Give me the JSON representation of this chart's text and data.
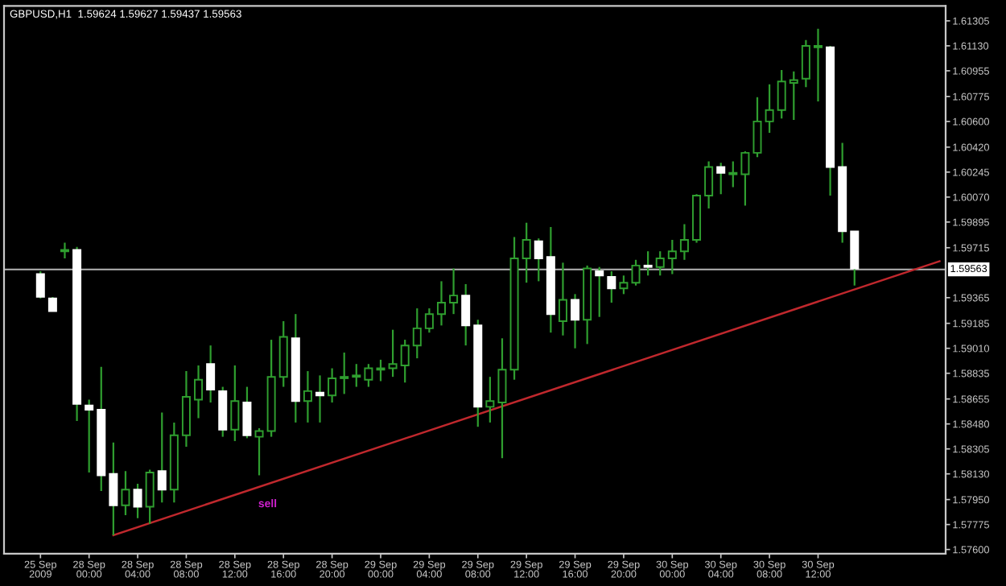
{
  "chart_data": {
    "type": "candlestick",
    "title": "GBPUSD,H1  1.59624 1.59627 1.59437 1.59563",
    "categories": [
      "25 Sep 2009",
      null,
      null,
      null,
      "28 Sep 00:00",
      null,
      null,
      null,
      "28 Sep 04:00",
      null,
      null,
      null,
      "28 Sep 08:00",
      null,
      null,
      null,
      "28 Sep 12:00",
      null,
      null,
      null,
      "28 Sep 16:00",
      null,
      null,
      null,
      "28 Sep 20:00",
      null,
      null,
      null,
      "29 Sep 00:00",
      null,
      null,
      null,
      "29 Sep 04:00",
      null,
      null,
      null,
      "29 Sep 08:00",
      null,
      null,
      null,
      "29 Sep 12:00",
      null,
      null,
      null,
      "29 Sep 16:00",
      null,
      null,
      null,
      "29 Sep 20:00",
      null,
      null,
      null,
      "30 Sep 00:00",
      null,
      null,
      null,
      "30 Sep 04:00",
      null,
      null,
      null,
      "30 Sep 08:00",
      null,
      null,
      null,
      "30 Sep 12:00",
      null,
      null,
      null,
      null,
      null,
      null,
      null,
      null,
      null,
      null
    ],
    "series": [
      {
        "type": "candlestick",
        "color": "#2f9e2f",
        "colors": [
          "#ffffff",
          "#ffffff",
          "#2f9e2f",
          "#ffffff",
          "#ffffff",
          "#ffffff",
          "#ffffff",
          "#2f9e2f",
          "#ffffff",
          "#2f9e2f",
          "#ffffff",
          "#2f9e2f",
          "#2f9e2f",
          "#2f9e2f",
          "#ffffff",
          "#ffffff",
          "#2f9e2f",
          "#ffffff",
          "#2f9e2f",
          "#2f9e2f",
          "#2f9e2f",
          "#ffffff",
          "#2f9e2f",
          "#ffffff",
          "#2f9e2f",
          "#2f9e2f",
          "#2f9e2f",
          "#2f9e2f",
          "#2f9e2f",
          "#2f9e2f",
          "#2f9e2f",
          "#2f9e2f",
          "#2f9e2f",
          "#2f9e2f",
          "#2f9e2f",
          "#ffffff",
          "#ffffff",
          "#2f9e2f",
          "#2f9e2f",
          "#2f9e2f",
          "#2f9e2f",
          "#ffffff",
          "#ffffff",
          "#2f9e2f",
          "#ffffff",
          "#2f9e2f",
          "#ffffff",
          "#ffffff",
          "#2f9e2f",
          "#2f9e2f",
          "#ffffff",
          "#2f9e2f",
          "#2f9e2f",
          "#2f9e2f",
          "#2f9e2f",
          "#2f9e2f",
          "#ffffff",
          "#2f9e2f",
          "#2f9e2f",
          "#2f9e2f",
          "#2f9e2f",
          "#2f9e2f",
          "#2f9e2f",
          "#2f9e2f",
          "#2f9e2f",
          "#ffffff",
          "#ffffff",
          "#ffffff",
          null,
          null,
          null,
          null,
          null,
          null,
          null
        ],
        "ohlc": [
          [
            1.5953,
            1.5955,
            1.5936,
            1.5937
          ],
          [
            1.5936,
            1.5937,
            1.5927,
            1.5927
          ],
          [
            1.5969,
            1.5975,
            1.5964,
            1.597
          ],
          [
            1.597,
            1.5972,
            1.585,
            1.5862
          ],
          [
            1.5861,
            1.5865,
            1.5814,
            1.5858
          ],
          [
            1.5858,
            1.5888,
            1.5801,
            1.5812
          ],
          [
            1.5813,
            1.5835,
            1.577,
            1.5791
          ],
          [
            1.5791,
            1.5815,
            1.5784,
            1.5802
          ],
          [
            1.5802,
            1.5806,
            1.5782,
            1.579
          ],
          [
            1.579,
            1.5816,
            1.5778,
            1.5814
          ],
          [
            1.5815,
            1.5856,
            1.5793,
            1.5802
          ],
          [
            1.5802,
            1.5849,
            1.5793,
            1.584
          ],
          [
            1.584,
            1.5885,
            1.5832,
            1.5867
          ],
          [
            1.5865,
            1.5889,
            1.5852,
            1.5879
          ],
          [
            1.589,
            1.5903,
            1.5863,
            1.5872
          ],
          [
            1.5871,
            1.5874,
            1.5839,
            1.5844
          ],
          [
            1.5844,
            1.5889,
            1.5836,
            1.5864
          ],
          [
            1.5863,
            1.5874,
            1.5838,
            1.584
          ],
          [
            1.5839,
            1.5845,
            1.5812,
            1.5843
          ],
          [
            1.5843,
            1.5907,
            1.5839,
            1.5881
          ],
          [
            1.5881,
            1.592,
            1.5874,
            1.5909
          ],
          [
            1.5908,
            1.5925,
            1.5849,
            1.5864
          ],
          [
            1.5864,
            1.5885,
            1.5849,
            1.5871
          ],
          [
            1.587,
            1.5882,
            1.5849,
            1.5868
          ],
          [
            1.5868,
            1.5887,
            1.5863,
            1.588
          ],
          [
            1.588,
            1.5898,
            1.5869,
            1.5881
          ],
          [
            1.5881,
            1.589,
            1.5874,
            1.5882
          ],
          [
            1.5879,
            1.589,
            1.5874,
            1.5887
          ],
          [
            1.5886,
            1.5893,
            1.5878,
            1.5887
          ],
          [
            1.5887,
            1.5914,
            1.5881,
            1.589
          ],
          [
            1.5889,
            1.5907,
            1.5877,
            1.5903
          ],
          [
            1.5903,
            1.5929,
            1.5894,
            1.5915
          ],
          [
            1.5915,
            1.5929,
            1.5912,
            1.5925
          ],
          [
            1.5925,
            1.5948,
            1.5917,
            1.5933
          ],
          [
            1.5933,
            1.5957,
            1.5925,
            1.5938
          ],
          [
            1.5938,
            1.5946,
            1.5903,
            1.5917
          ],
          [
            1.5917,
            1.5921,
            1.5846,
            1.586
          ],
          [
            1.586,
            1.5881,
            1.5849,
            1.5864
          ],
          [
            1.5863,
            1.5908,
            1.5824,
            1.5886
          ],
          [
            1.5886,
            1.5979,
            1.5879,
            1.5964
          ],
          [
            1.5964,
            1.5989,
            1.5947,
            1.5977
          ],
          [
            1.5976,
            1.5978,
            1.5948,
            1.5964
          ],
          [
            1.5965,
            1.5986,
            1.5912,
            1.5925
          ],
          [
            1.592,
            1.5961,
            1.591,
            1.5935
          ],
          [
            1.5935,
            1.5939,
            1.5901,
            1.5921
          ],
          [
            1.5921,
            1.5959,
            1.5904,
            1.5957
          ],
          [
            1.5955,
            1.5958,
            1.5923,
            1.5952
          ],
          [
            1.5951,
            1.5955,
            1.5933,
            1.5943
          ],
          [
            1.5943,
            1.5952,
            1.5939,
            1.5947
          ],
          [
            1.5947,
            1.5963,
            1.5945,
            1.5959
          ],
          [
            1.5959,
            1.5969,
            1.5952,
            1.5958
          ],
          [
            1.5958,
            1.5969,
            1.5952,
            1.5964
          ],
          [
            1.5964,
            1.5977,
            1.5953,
            1.5969
          ],
          [
            1.5969,
            1.5988,
            1.5963,
            1.5977
          ],
          [
            1.5977,
            1.6009,
            1.5975,
            1.6008
          ],
          [
            1.6008,
            1.6032,
            1.5999,
            1.6028
          ],
          [
            1.6028,
            1.6031,
            1.6009,
            1.6024
          ],
          [
            1.6023,
            1.6032,
            1.6014,
            1.6024
          ],
          [
            1.6023,
            1.6039,
            1.6001,
            1.6038
          ],
          [
            1.6038,
            1.6077,
            1.6035,
            1.606
          ],
          [
            1.606,
            1.6086,
            1.6052,
            1.6068
          ],
          [
            1.6068,
            1.6096,
            1.6062,
            1.6088
          ],
          [
            1.6087,
            1.6095,
            1.6061,
            1.6089
          ],
          [
            1.609,
            1.6117,
            1.6084,
            1.6113
          ],
          [
            1.6112,
            1.6125,
            1.6074,
            1.6113
          ],
          [
            1.6112,
            1.6113,
            1.6008,
            1.6028
          ],
          [
            1.6028,
            1.6045,
            1.5975,
            1.5983
          ],
          [
            1.5983,
            1.5983,
            1.5945,
            1.5957
          ],
          null,
          null,
          null,
          null,
          null,
          null,
          null
        ]
      },
      {
        "type": "line",
        "color": "#c0282d",
        "values": [
          null,
          null,
          null,
          null,
          null,
          null,
          1.577,
          null,
          null,
          null,
          null,
          null,
          null,
          null,
          null,
          null,
          null,
          null,
          null,
          null,
          null,
          null,
          null,
          null,
          null,
          null,
          null,
          null,
          null,
          null,
          null,
          null,
          null,
          null,
          null,
          null,
          null,
          null,
          null,
          null,
          null,
          null,
          null,
          null,
          null,
          null,
          null,
          null,
          null,
          null,
          null,
          null,
          null,
          null,
          null,
          null,
          null,
          null,
          null,
          null,
          null,
          null,
          null,
          null,
          null,
          null,
          null,
          null,
          null,
          null,
          null,
          null,
          null,
          null,
          1.5962
        ]
      }
    ],
    "ylim": [
      1.5757,
      1.6141
    ],
    "yticks": [
      1.61305,
      {
        "value": 1.6113,
        "label": "1.61130"
      },
      1.60955,
      1.60775,
      {
        "value": 1.606,
        "label": "1.60600"
      },
      {
        "value": 1.6042,
        "label": "1.60420"
      },
      1.60245,
      {
        "value": 1.6007,
        "label": "1.60070"
      },
      1.59895,
      1.59715,
      1.59365,
      1.59185,
      {
        "value": 1.5901,
        "label": "1.59010"
      },
      1.58835,
      1.58655,
      {
        "value": 1.5848,
        "label": "1.58480"
      },
      1.58305,
      {
        "value": 1.5813,
        "label": "1.58130"
      },
      {
        "value": 1.5795,
        "label": "1.57950"
      },
      1.57775,
      {
        "value": 1.576,
        "label": "1.57600"
      }
    ],
    "ref_lines": [
      {
        "axis": "y",
        "value": 1.59563,
        "label": "1.59563",
        "color": "#b4b4b4"
      }
    ],
    "annotations": [
      "sell"
    ],
    "grid": false,
    "legend": false
  }
}
